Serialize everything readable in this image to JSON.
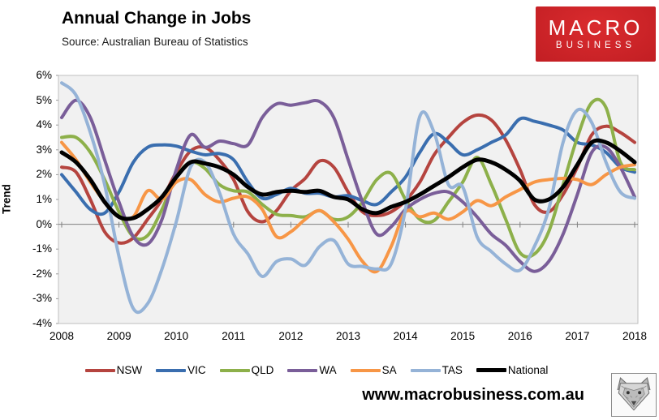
{
  "header": {
    "title": "Annual Change in Jobs",
    "subtitle": "Source: Australian Bureau of Statistics"
  },
  "logo": {
    "line1": "MACRO",
    "line2": "BUSINESS",
    "bg_color": "#c9222a",
    "text_color": "#ffffff"
  },
  "footer": {
    "url": "www.macrobusiness.com.au",
    "icon": "fox-sketch-icon"
  },
  "chart_data": {
    "type": "line",
    "title": "Annual Change in Jobs",
    "xlabel": "",
    "ylabel": "Trend",
    "xlim": [
      2008,
      2018
    ],
    "ylim": [
      -4,
      6
    ],
    "grid": false,
    "plot_bg": "#f1f1f1",
    "zero_axis_color": "#808080",
    "legend_position": "bottom",
    "x_tick_labels": [
      "2008",
      "2009",
      "2010",
      "2011",
      "2012",
      "2013",
      "2014",
      "2015",
      "2016",
      "2017",
      "2018"
    ],
    "y_tick_labels": [
      "6%",
      "5%",
      "4%",
      "3%",
      "2%",
      "1%",
      "0%",
      "-1%",
      "-2%",
      "-3%",
      "-4%"
    ],
    "y_tick_values": [
      6,
      5,
      4,
      3,
      2,
      1,
      0,
      -1,
      -2,
      -3,
      -4
    ],
    "x_step": 0.25,
    "x_start": 2008,
    "series": [
      {
        "name": "NSW",
        "color": "#b5443f",
        "width": 4,
        "values": [
          2.3,
          2.1,
          1.0,
          -0.3,
          -0.75,
          -0.55,
          0.2,
          1.0,
          2.1,
          2.95,
          3.1,
          2.6,
          1.8,
          0.5,
          0.1,
          0.55,
          1.35,
          1.85,
          2.55,
          2.3,
          1.3,
          0.5,
          0.35,
          0.5,
          0.95,
          1.7,
          2.8,
          3.5,
          4.1,
          4.4,
          4.2,
          3.4,
          2.2,
          0.8,
          0.5,
          1.2,
          2.3,
          3.6,
          3.95,
          3.7,
          3.3
        ]
      },
      {
        "name": "VIC",
        "color": "#3a6eaf",
        "width": 4,
        "values": [
          2.0,
          1.3,
          0.6,
          0.45,
          1.3,
          2.5,
          3.1,
          3.2,
          3.15,
          2.95,
          2.8,
          2.85,
          2.6,
          1.7,
          1.05,
          1.2,
          1.45,
          1.25,
          1.25,
          1.1,
          1.15,
          0.95,
          0.8,
          1.3,
          1.9,
          2.9,
          3.65,
          3.3,
          2.8,
          3.0,
          3.3,
          3.6,
          4.25,
          4.15,
          4.0,
          3.8,
          3.3,
          3.2,
          2.9,
          2.3,
          2.1
        ]
      },
      {
        "name": "QLD",
        "color": "#8db04a",
        "width": 4,
        "values": [
          3.5,
          3.5,
          2.9,
          1.8,
          0.5,
          -0.5,
          -0.45,
          0.6,
          1.9,
          2.5,
          2.25,
          1.6,
          1.35,
          1.3,
          0.8,
          0.4,
          0.35,
          0.3,
          0.55,
          0.2,
          0.3,
          0.9,
          1.8,
          2.05,
          1.0,
          0.2,
          0.15,
          0.9,
          1.7,
          2.7,
          1.6,
          0.2,
          -1.15,
          -1.2,
          -0.3,
          1.6,
          3.5,
          4.9,
          4.7,
          2.5,
          2.2
        ]
      },
      {
        "name": "WA",
        "color": "#7a5e99",
        "width": 4,
        "values": [
          4.3,
          5.0,
          4.3,
          2.6,
          0.9,
          -0.5,
          -0.8,
          0.2,
          2.2,
          3.6,
          3.1,
          3.35,
          3.25,
          3.2,
          4.3,
          4.85,
          4.8,
          4.9,
          4.95,
          4.3,
          2.6,
          0.9,
          -0.4,
          -0.1,
          0.6,
          1.0,
          1.25,
          1.3,
          0.9,
          0.3,
          -0.4,
          -0.85,
          -1.5,
          -1.9,
          -1.5,
          -0.4,
          1.2,
          2.9,
          3.1,
          2.3,
          1.1
        ]
      },
      {
        "name": "SA",
        "color": "#f79646",
        "width": 4,
        "values": [
          3.3,
          2.6,
          1.7,
          0.9,
          0.3,
          0.3,
          1.35,
          1.0,
          1.7,
          1.8,
          1.2,
          0.9,
          1.05,
          1.1,
          0.6,
          -0.5,
          -0.3,
          0.2,
          0.55,
          0.1,
          -0.6,
          -1.5,
          -1.9,
          -0.9,
          0.5,
          0.3,
          0.45,
          0.2,
          0.5,
          0.95,
          0.75,
          1.1,
          1.4,
          1.7,
          1.8,
          1.85,
          1.8,
          1.6,
          2.0,
          2.3,
          2.4
        ]
      },
      {
        "name": "TAS",
        "color": "#95b3d7",
        "width": 4,
        "values": [
          5.7,
          5.2,
          3.7,
          1.6,
          -1.3,
          -3.4,
          -3.2,
          -1.8,
          0.1,
          2.3,
          2.5,
          1.3,
          -0.4,
          -1.2,
          -2.1,
          -1.5,
          -1.4,
          -1.65,
          -0.9,
          -0.65,
          -1.6,
          -1.7,
          -1.8,
          -1.6,
          0.6,
          4.35,
          3.7,
          1.6,
          1.5,
          -0.5,
          -1.1,
          -1.6,
          -1.85,
          -0.9,
          0.6,
          3.3,
          4.6,
          4.1,
          2.5,
          1.3,
          1.05
        ]
      },
      {
        "name": "National",
        "color": "#000000",
        "width": 5,
        "values": [
          2.9,
          2.5,
          1.8,
          0.9,
          0.3,
          0.25,
          0.6,
          1.1,
          1.9,
          2.5,
          2.45,
          2.3,
          2.0,
          1.5,
          1.2,
          1.3,
          1.35,
          1.3,
          1.35,
          1.1,
          1.0,
          0.6,
          0.45,
          0.7,
          0.9,
          1.2,
          1.55,
          1.9,
          2.3,
          2.6,
          2.5,
          2.2,
          1.75,
          1.0,
          1.0,
          1.5,
          2.4,
          3.3,
          3.3,
          2.95,
          2.5
        ]
      }
    ]
  }
}
